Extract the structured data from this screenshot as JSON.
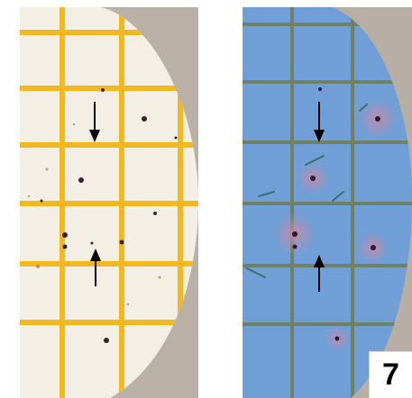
{
  "figure": {
    "label": "7"
  },
  "panels": [
    {
      "id": "left",
      "description_name": "yellow-grid-membrane",
      "background_color": "#b9b1a6",
      "membrane_color": "#f3efe4",
      "grid_color": "#f2b81e",
      "arrows": [
        {
          "direction": "down"
        },
        {
          "direction": "up"
        }
      ]
    },
    {
      "id": "right",
      "description_name": "blue-stained-membrane",
      "background_color": "#b7afa6",
      "membrane_color": "#6f9fd6",
      "grid_color": "#6f7d57",
      "arrows": [
        {
          "direction": "down"
        },
        {
          "direction": "up"
        }
      ]
    }
  ]
}
